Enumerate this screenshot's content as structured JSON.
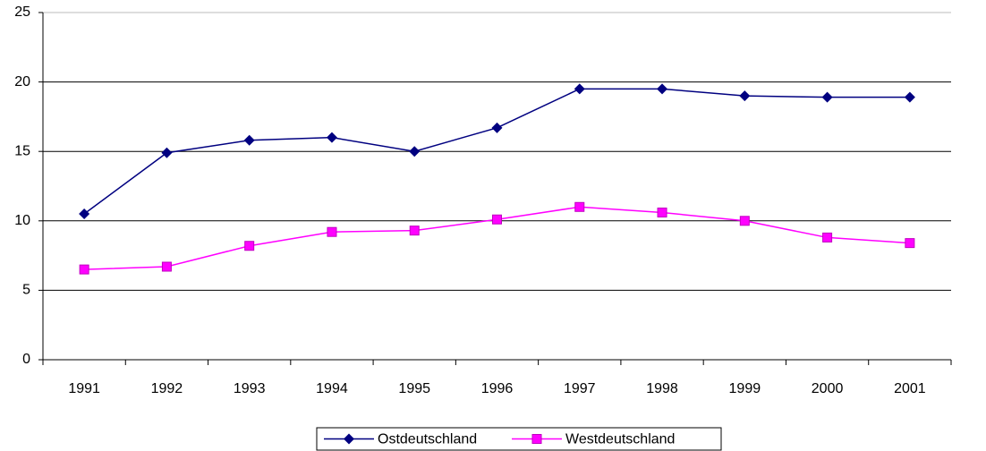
{
  "chart_data": {
    "type": "line",
    "categories": [
      "1991",
      "1992",
      "1993",
      "1994",
      "1995",
      "1996",
      "1997",
      "1998",
      "1999",
      "2000",
      "2001"
    ],
    "series": [
      {
        "name": "Ostdeutschland",
        "color": "#000080",
        "marker": "diamond",
        "values": [
          10.5,
          14.9,
          15.8,
          16.0,
          15.0,
          16.7,
          19.5,
          19.5,
          19.0,
          18.9,
          18.9
        ]
      },
      {
        "name": "Westdeutschland",
        "color": "#ff00ff",
        "marker": "square",
        "values": [
          6.5,
          6.7,
          8.2,
          9.2,
          9.3,
          10.1,
          11.0,
          10.6,
          10.0,
          8.8,
          8.4
        ]
      }
    ],
    "ylim": [
      0,
      25
    ],
    "yticks": [
      0,
      5,
      10,
      15,
      20,
      25
    ],
    "grid": true,
    "legend": "bottom"
  }
}
